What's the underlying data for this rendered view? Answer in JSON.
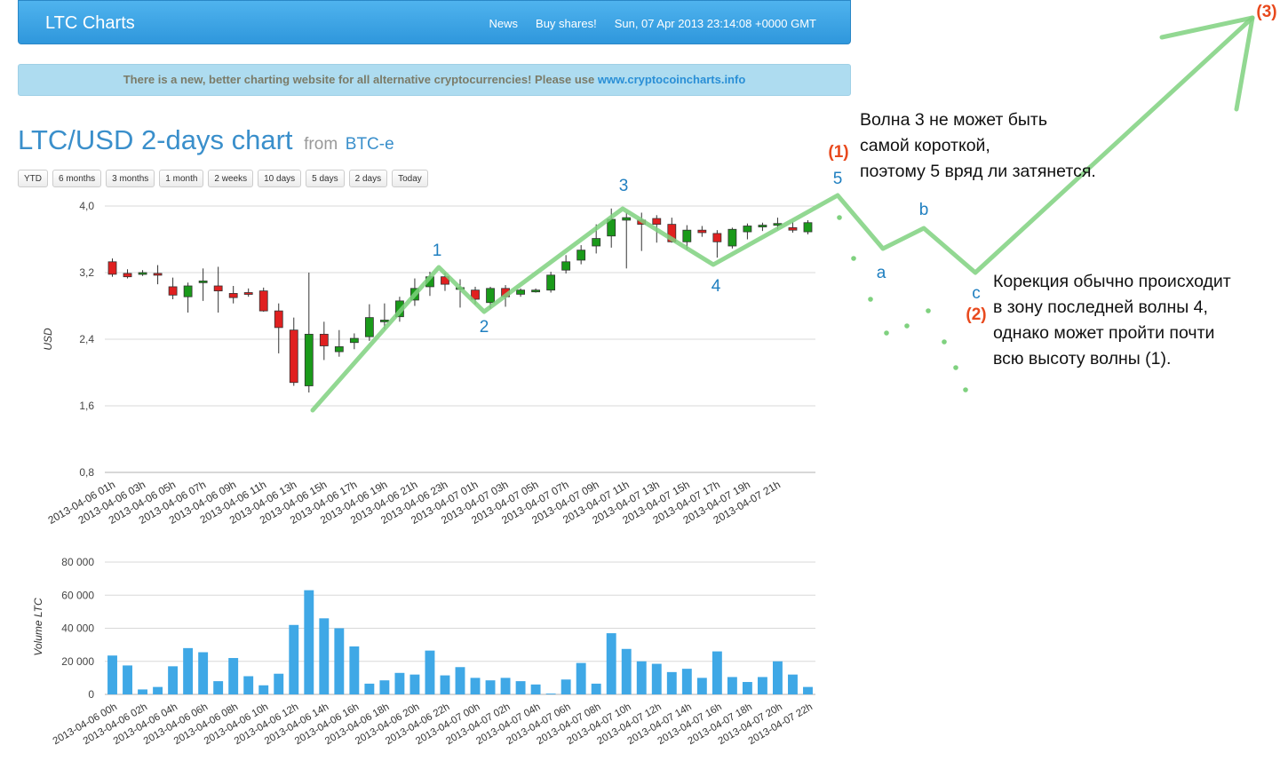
{
  "navbar": {
    "brand": "LTC Charts",
    "news": "News",
    "buy": "Buy shares!",
    "datetime": "Sun, 07 Apr 2013 23:14:08 +0000 GMT"
  },
  "notice": {
    "text": "There is a new, better charting website for all alternative cryptocurrencies! Please use ",
    "link": "www.cryptocoincharts.info"
  },
  "heading": {
    "title": "LTC/USD 2-days chart",
    "from": "from",
    "exchange": "BTC-e"
  },
  "range_buttons": [
    "YTD",
    "6 months",
    "3 months",
    "1 month",
    "2 weeks",
    "10 days",
    "5 days",
    "2 days",
    "Today"
  ],
  "annotations": {
    "note_top": [
      "Волна 3 не может быть",
      "самой короткой,",
      "поэтому 5 вряд ли затянется."
    ],
    "note_bottom": [
      "Корекция обычно происходит",
      "в зону последней волны 4,",
      "однако может пройти почти",
      "всю высоту волны (1)."
    ],
    "wave_labels": [
      "1",
      "2",
      "3",
      "4",
      "5",
      "a",
      "b",
      "c"
    ],
    "degree_labels": [
      "(1)",
      "(2)",
      "(3)"
    ],
    "colors": {
      "wave": "#7fd17f",
      "wave_label": "#1f7fc0",
      "degree_label": "#e8491d"
    }
  },
  "chart_data": [
    {
      "type": "candlestick",
      "ylabel": "USD",
      "ylim": [
        0.8,
        4.0
      ],
      "y_ticks": [
        "0,8",
        "1,6",
        "2,4",
        "3,2",
        "4,0"
      ],
      "x_tick_labels": [
        "2013-04-06 01h",
        "2013-04-06 03h",
        "2013-04-06 05h",
        "2013-04-06 07h",
        "2013-04-06 09h",
        "2013-04-06 11h",
        "2013-04-06 13h",
        "2013-04-06 15h",
        "2013-04-06 17h",
        "2013-04-06 19h",
        "2013-04-06 21h",
        "2013-04-06 23h",
        "2013-04-07 01h",
        "2013-04-07 03h",
        "2013-04-07 05h",
        "2013-04-07 07h",
        "2013-04-07 09h",
        "2013-04-07 11h",
        "2013-04-07 13h",
        "2013-04-07 15h",
        "2013-04-07 17h",
        "2013-04-07 19h",
        "2013-04-07 21h"
      ],
      "candles": [
        {
          "o": 3.33,
          "h": 3.37,
          "l": 3.15,
          "c": 3.18
        },
        {
          "o": 3.19,
          "h": 3.24,
          "l": 3.13,
          "c": 3.15
        },
        {
          "o": 3.19,
          "h": 3.23,
          "l": 3.16,
          "c": 3.2
        },
        {
          "o": 3.19,
          "h": 3.29,
          "l": 3.06,
          "c": 3.17
        },
        {
          "o": 3.03,
          "h": 3.14,
          "l": 2.88,
          "c": 2.93
        },
        {
          "o": 2.91,
          "h": 3.08,
          "l": 2.72,
          "c": 3.04
        },
        {
          "o": 3.08,
          "h": 3.25,
          "l": 2.86,
          "c": 3.1
        },
        {
          "o": 3.04,
          "h": 3.27,
          "l": 2.72,
          "c": 2.98
        },
        {
          "o": 2.95,
          "h": 3.04,
          "l": 2.83,
          "c": 2.9
        },
        {
          "o": 2.96,
          "h": 3.01,
          "l": 2.91,
          "c": 2.94
        },
        {
          "o": 2.98,
          "h": 3.02,
          "l": 2.73,
          "c": 2.74
        },
        {
          "o": 2.74,
          "h": 2.83,
          "l": 2.23,
          "c": 2.54
        },
        {
          "o": 2.51,
          "h": 2.66,
          "l": 1.84,
          "c": 1.88
        },
        {
          "o": 1.84,
          "h": 3.2,
          "l": 1.76,
          "c": 2.46
        },
        {
          "o": 2.46,
          "h": 2.61,
          "l": 2.15,
          "c": 2.32
        },
        {
          "o": 2.25,
          "h": 2.51,
          "l": 2.19,
          "c": 2.31
        },
        {
          "o": 2.36,
          "h": 2.47,
          "l": 2.28,
          "c": 2.41
        },
        {
          "o": 2.43,
          "h": 2.82,
          "l": 2.38,
          "c": 2.66
        },
        {
          "o": 2.61,
          "h": 2.83,
          "l": 2.52,
          "c": 2.63
        },
        {
          "o": 2.67,
          "h": 2.91,
          "l": 2.61,
          "c": 2.86
        },
        {
          "o": 2.87,
          "h": 3.13,
          "l": 2.8,
          "c": 3.01
        },
        {
          "o": 3.03,
          "h": 3.21,
          "l": 2.92,
          "c": 3.15
        },
        {
          "o": 3.15,
          "h": 3.2,
          "l": 2.98,
          "c": 3.06
        },
        {
          "o": 3.01,
          "h": 3.12,
          "l": 2.78,
          "c": 3.02
        },
        {
          "o": 2.99,
          "h": 3.03,
          "l": 2.82,
          "c": 2.88
        },
        {
          "o": 2.84,
          "h": 3.03,
          "l": 2.77,
          "c": 3.01
        },
        {
          "o": 3.01,
          "h": 3.05,
          "l": 2.79,
          "c": 2.91
        },
        {
          "o": 2.94,
          "h": 3.01,
          "l": 2.91,
          "c": 2.99
        },
        {
          "o": 2.98,
          "h": 3.01,
          "l": 2.96,
          "c": 2.99
        },
        {
          "o": 2.99,
          "h": 3.21,
          "l": 2.96,
          "c": 3.17
        },
        {
          "o": 3.23,
          "h": 3.41,
          "l": 3.19,
          "c": 3.33
        },
        {
          "o": 3.35,
          "h": 3.53,
          "l": 3.3,
          "c": 3.47
        },
        {
          "o": 3.52,
          "h": 3.78,
          "l": 3.43,
          "c": 3.61
        },
        {
          "o": 3.64,
          "h": 3.97,
          "l": 3.5,
          "c": 3.84
        },
        {
          "o": 3.83,
          "h": 3.92,
          "l": 3.25,
          "c": 3.86
        },
        {
          "o": 3.83,
          "h": 3.92,
          "l": 3.46,
          "c": 3.78
        },
        {
          "o": 3.85,
          "h": 3.89,
          "l": 3.56,
          "c": 3.78
        },
        {
          "o": 3.78,
          "h": 3.86,
          "l": 3.56,
          "c": 3.57
        },
        {
          "o": 3.57,
          "h": 3.77,
          "l": 3.48,
          "c": 3.71
        },
        {
          "o": 3.71,
          "h": 3.76,
          "l": 3.63,
          "c": 3.68
        },
        {
          "o": 3.67,
          "h": 3.71,
          "l": 3.38,
          "c": 3.57
        },
        {
          "o": 3.52,
          "h": 3.74,
          "l": 3.49,
          "c": 3.72
        },
        {
          "o": 3.69,
          "h": 3.79,
          "l": 3.6,
          "c": 3.76
        },
        {
          "o": 3.75,
          "h": 3.8,
          "l": 3.7,
          "c": 3.77
        },
        {
          "o": 3.77,
          "h": 3.86,
          "l": 3.72,
          "c": 3.79
        },
        {
          "o": 3.74,
          "h": 3.81,
          "l": 3.68,
          "c": 3.71
        },
        {
          "o": 3.69,
          "h": 3.83,
          "l": 3.66,
          "c": 3.8
        }
      ]
    },
    {
      "type": "bar",
      "ylabel": "Volume LTC",
      "ylim": [
        0,
        80000
      ],
      "y_ticks": [
        "0",
        "20 000",
        "40 000",
        "60 000",
        "80 000"
      ],
      "x_tick_labels": [
        "2013-04-06 00h",
        "2013-04-06 02h",
        "2013-04-06 04h",
        "2013-04-06 06h",
        "2013-04-06 08h",
        "2013-04-06 10h",
        "2013-04-06 12h",
        "2013-04-06 14h",
        "2013-04-06 16h",
        "2013-04-06 18h",
        "2013-04-06 20h",
        "2013-04-06 22h",
        "2013-04-07 00h",
        "2013-04-07 02h",
        "2013-04-07 04h",
        "2013-04-07 06h",
        "2013-04-07 08h",
        "2013-04-07 10h",
        "2013-04-07 12h",
        "2013-04-07 14h",
        "2013-04-07 16h",
        "2013-04-07 18h",
        "2013-04-07 20h",
        "2013-04-07 22h"
      ],
      "values": [
        23500,
        17500,
        3000,
        4500,
        17000,
        28000,
        25500,
        8000,
        22000,
        11000,
        5500,
        12500,
        42000,
        63000,
        46000,
        40000,
        29000,
        6500,
        8500,
        13000,
        12000,
        26500,
        11500,
        16500,
        10000,
        8500,
        10000,
        8000,
        6000,
        500,
        9000,
        19000,
        6500,
        37000,
        27500,
        20000,
        18500,
        13500,
        15500,
        10000,
        26000,
        10500,
        7500,
        10500,
        20000,
        12000,
        4500
      ]
    }
  ]
}
